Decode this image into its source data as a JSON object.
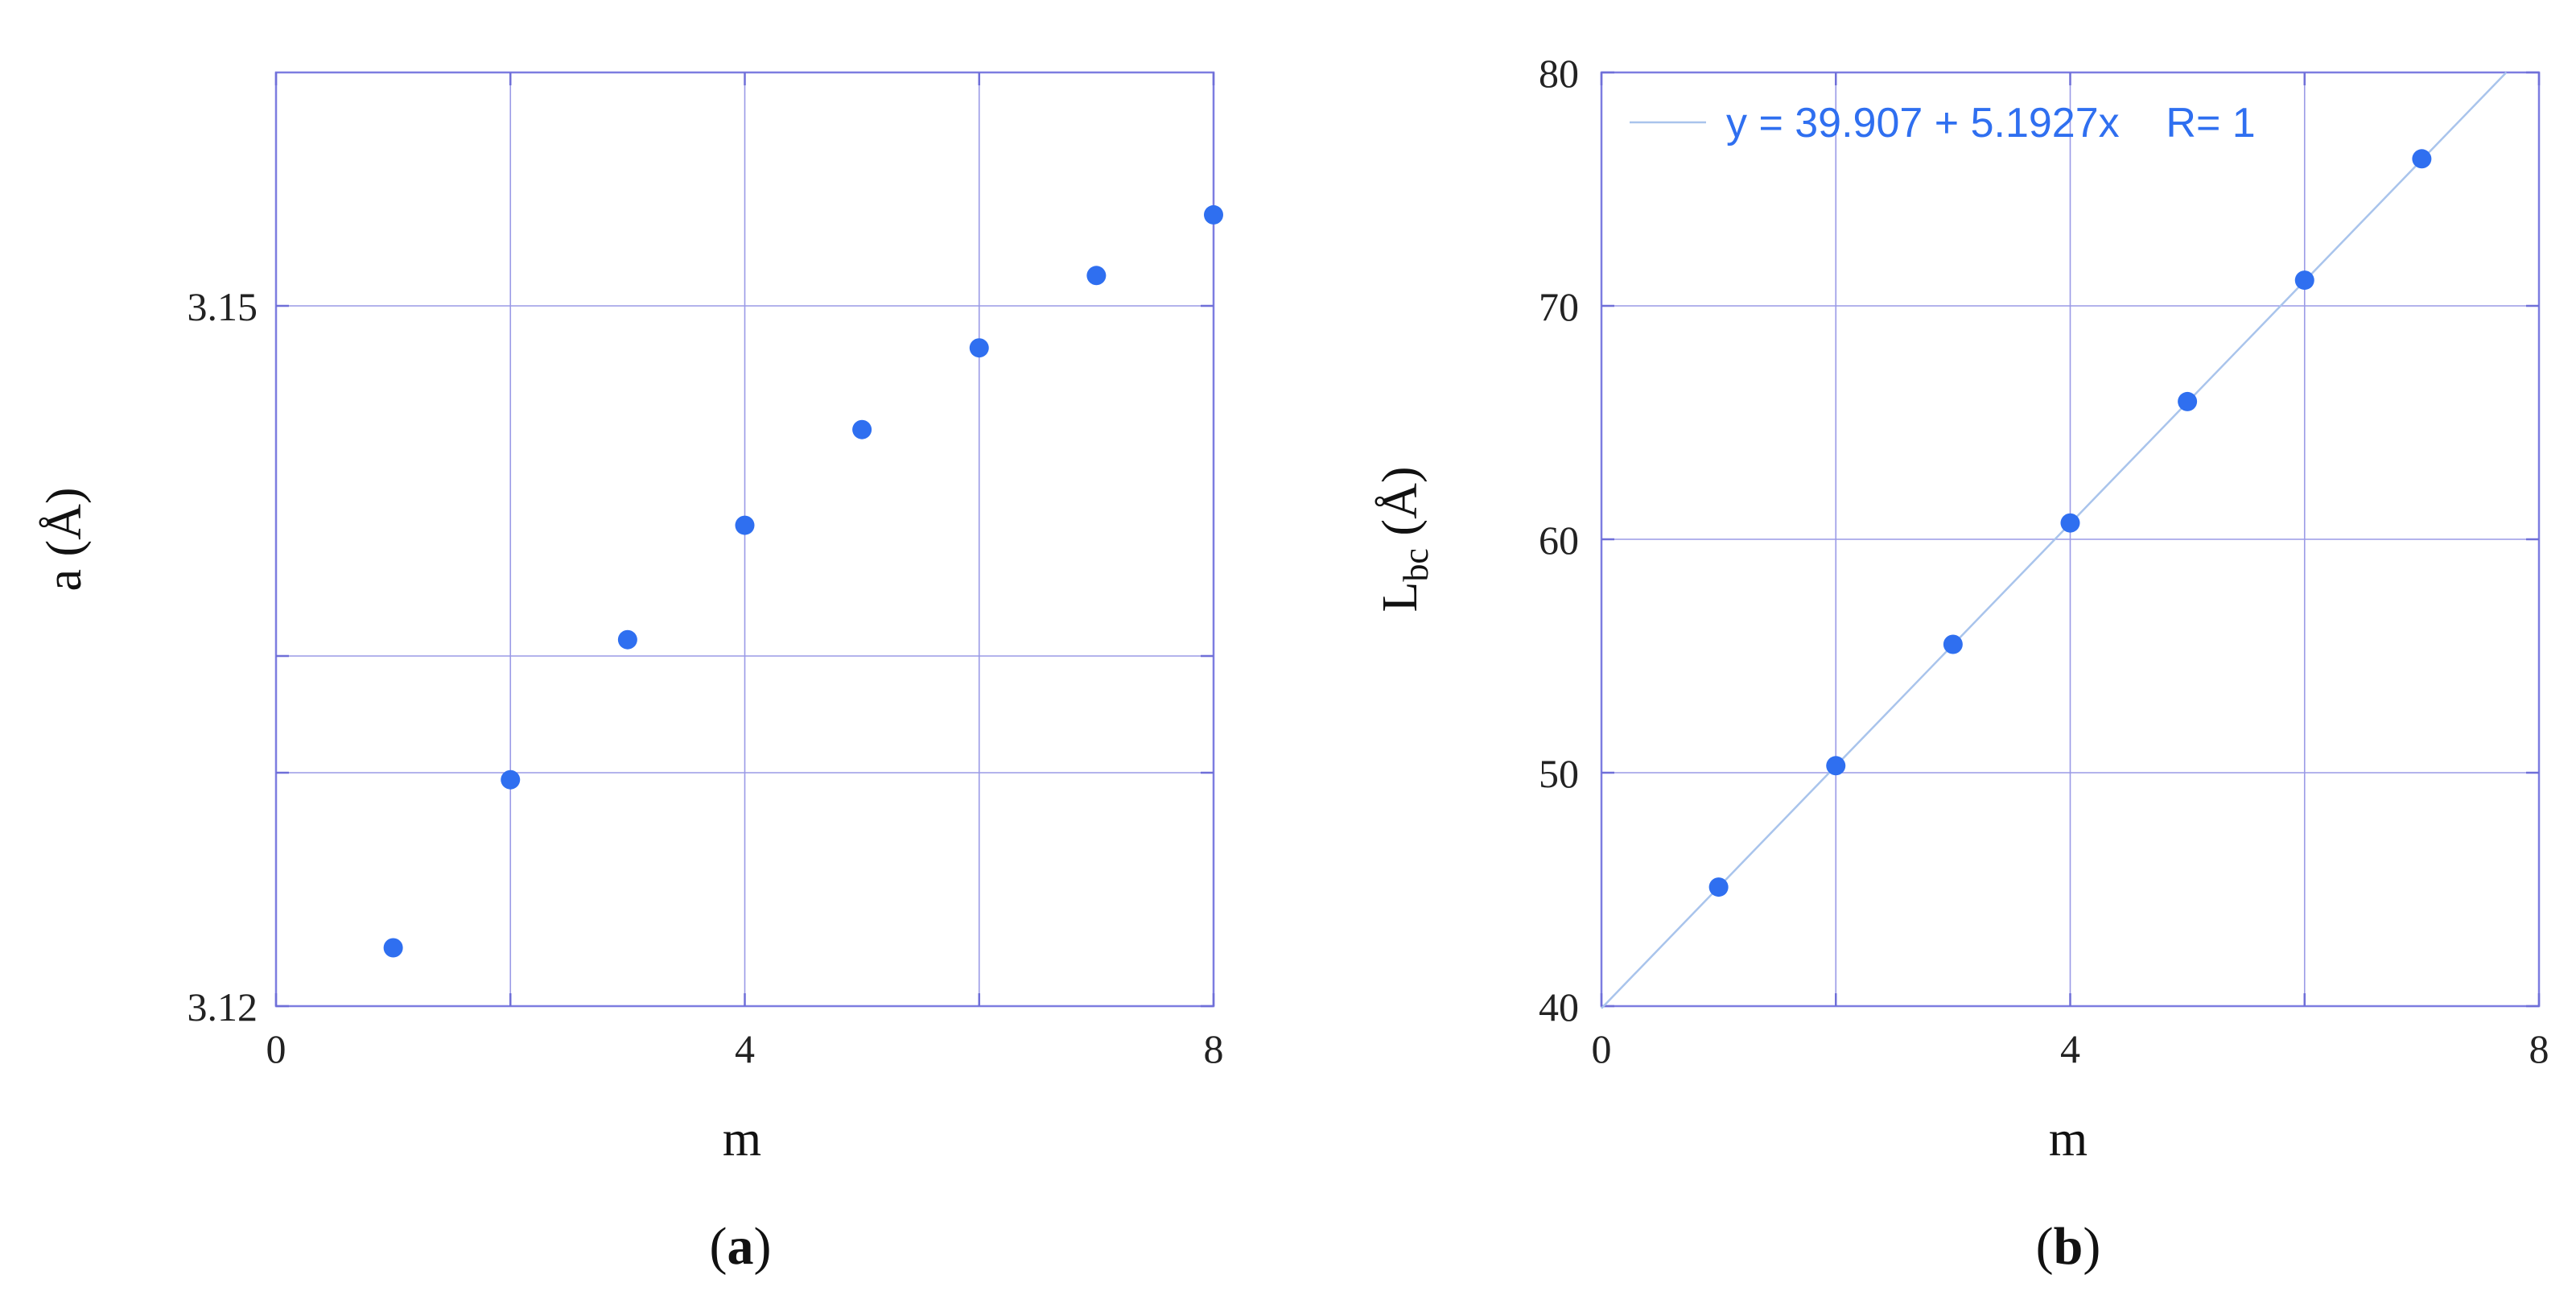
{
  "chart_data": [
    {
      "type": "scatter",
      "panel_label": "a",
      "xlabel": "m",
      "ylabel": "a (Å)",
      "xlim": [
        0,
        8
      ],
      "ylim": [
        3.12,
        3.16
      ],
      "x_ticks": [
        {
          "value": 0,
          "label": "0"
        },
        {
          "value": 4,
          "label": "4"
        },
        {
          "value": 8,
          "label": "8"
        }
      ],
      "y_ticks": [
        {
          "value": 3.12,
          "label": "3.12"
        },
        {
          "value": 3.15,
          "label": "3.15"
        }
      ],
      "x_grid": [
        2,
        4,
        6
      ],
      "y_grid": [
        3.13,
        3.135,
        3.15
      ],
      "grid": true,
      "marker_color": "#2f6ff0",
      "series": [
        {
          "points": [
            {
              "x": 1,
              "y": 3.1225
            },
            {
              "x": 2,
              "y": 3.1297
            },
            {
              "x": 3,
              "y": 3.1357
            },
            {
              "x": 4,
              "y": 3.1406
            },
            {
              "x": 5,
              "y": 3.1447
            },
            {
              "x": 6,
              "y": 3.1482
            },
            {
              "x": 7,
              "y": 3.1513
            },
            {
              "x": 8,
              "y": 3.1539
            }
          ]
        }
      ]
    },
    {
      "type": "scatter",
      "panel_label": "b",
      "xlabel": "m",
      "ylabel_main": "L",
      "ylabel_sub": "bc",
      "ylabel_unit": " (Å)",
      "xlim": [
        0,
        8
      ],
      "ylim": [
        40,
        80
      ],
      "x_ticks": [
        {
          "value": 0,
          "label": "0"
        },
        {
          "value": 4,
          "label": "4"
        },
        {
          "value": 8,
          "label": "8"
        }
      ],
      "y_ticks": [
        {
          "value": 40,
          "label": "40"
        },
        {
          "value": 50,
          "label": "50"
        },
        {
          "value": 60,
          "label": "60"
        },
        {
          "value": 70,
          "label": "70"
        },
        {
          "value": 80,
          "label": "80"
        }
      ],
      "x_grid": [
        2,
        4,
        6
      ],
      "y_grid": [
        50,
        60,
        70
      ],
      "grid": true,
      "marker_color": "#2f6ff0",
      "fit": {
        "intercept": 39.907,
        "slope": 5.1927,
        "label": "y = 39.907 + 5.1927x    R= 1",
        "color": "#a9c4ec"
      },
      "legend_position": "top-left",
      "series": [
        {
          "points": [
            {
              "x": 1,
              "y": 45.1
            },
            {
              "x": 2,
              "y": 50.3
            },
            {
              "x": 3,
              "y": 55.5
            },
            {
              "x": 4,
              "y": 60.7
            },
            {
              "x": 5,
              "y": 65.9
            },
            {
              "x": 6,
              "y": 71.1
            },
            {
              "x": 7,
              "y": 76.3
            }
          ]
        }
      ]
    }
  ]
}
